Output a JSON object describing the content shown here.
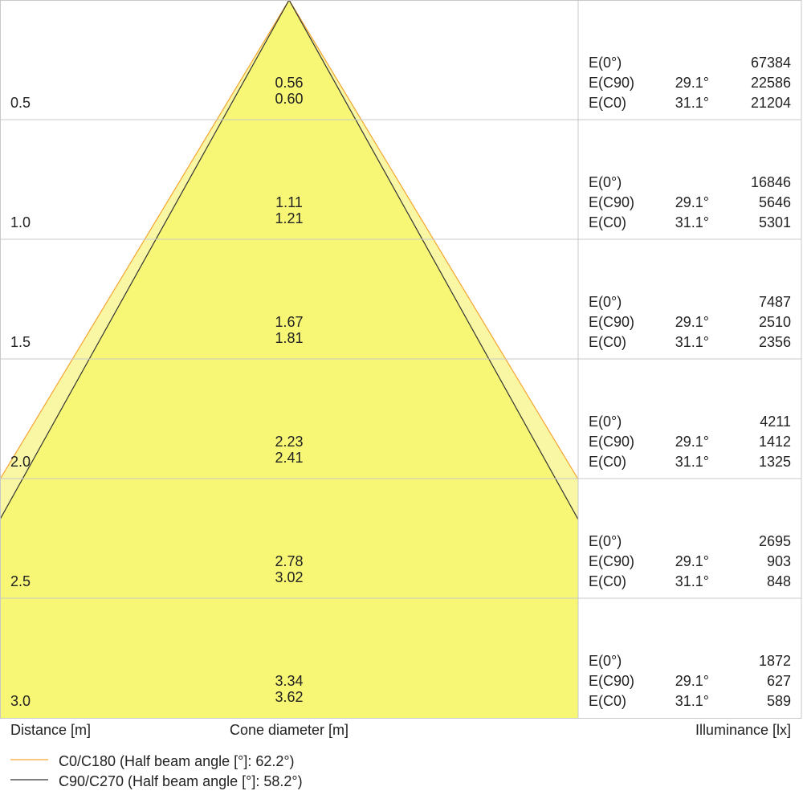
{
  "chart_data": {
    "type": "cone",
    "x_axis_label": "Distance [m]",
    "center_axis_label": "Cone diameter [m]",
    "right_axis_label": "Illuminance [lx]",
    "color_c0": "#f5a431",
    "color_c90": "#333333",
    "fill_color": "#f7f775",
    "fill_light_color": "#f9f7a3",
    "legend": [
      {
        "key": "c0",
        "label": "C0/C180 (Half beam angle [°]: 62.2°)"
      },
      {
        "key": "c90",
        "label": "C90/C270 (Half beam angle [°]: 58.2°)"
      }
    ],
    "rows": [
      {
        "distance": "0.5",
        "diam_c90": "0.56",
        "diam_c0": "0.60",
        "e0_label": "E(0°)",
        "e0": "67384",
        "ec90_label": "E(C90)",
        "ec90_angle": "29.1°",
        "ec90": "22586",
        "ec0_label": "E(C0)",
        "ec0_angle": "31.1°",
        "ec0": "21204"
      },
      {
        "distance": "1.0",
        "diam_c90": "1.11",
        "diam_c0": "1.21",
        "e0_label": "E(0°)",
        "e0": "16846",
        "ec90_label": "E(C90)",
        "ec90_angle": "29.1°",
        "ec90": "5646",
        "ec0_label": "E(C0)",
        "ec0_angle": "31.1°",
        "ec0": "5301"
      },
      {
        "distance": "1.5",
        "diam_c90": "1.67",
        "diam_c0": "1.81",
        "e0_label": "E(0°)",
        "e0": "7487",
        "ec90_label": "E(C90)",
        "ec90_angle": "29.1°",
        "ec90": "2510",
        "ec0_label": "E(C0)",
        "ec0_angle": "31.1°",
        "ec0": "2356"
      },
      {
        "distance": "2.0",
        "diam_c90": "2.23",
        "diam_c0": "2.41",
        "e0_label": "E(0°)",
        "e0": "4211",
        "ec90_label": "E(C90)",
        "ec90_angle": "29.1°",
        "ec90": "1412",
        "ec0_label": "E(C0)",
        "ec0_angle": "31.1°",
        "ec0": "1325"
      },
      {
        "distance": "2.5",
        "diam_c90": "2.78",
        "diam_c0": "3.02",
        "e0_label": "E(0°)",
        "e0": "2695",
        "ec90_label": "E(C90)",
        "ec90_angle": "29.1°",
        "ec90": "903",
        "ec0_label": "E(C0)",
        "ec0_angle": "31.1°",
        "ec0": "848"
      },
      {
        "distance": "3.0",
        "diam_c90": "3.34",
        "diam_c0": "3.62",
        "e0_label": "E(0°)",
        "e0": "1872",
        "ec90_label": "E(C90)",
        "ec90_angle": "29.1°",
        "ec90": "627",
        "ec0_label": "E(C0)",
        "ec0_angle": "31.1°",
        "ec0": "589"
      }
    ]
  }
}
